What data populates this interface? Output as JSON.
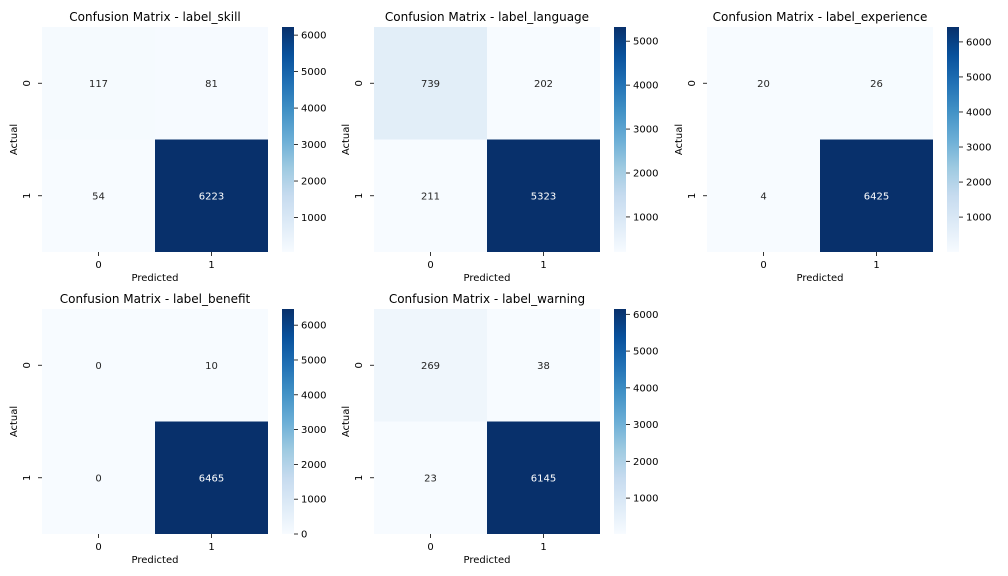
{
  "chart_data": [
    {
      "type": "heatmap",
      "title": "Confusion Matrix - label_skill",
      "xlabel": "Predicted",
      "ylabel": "Actual",
      "x_tick_labels": [
        "0",
        "1"
      ],
      "y_tick_labels": [
        "0",
        "1"
      ],
      "matrix": [
        [
          117,
          81
        ],
        [
          54,
          6223
        ]
      ],
      "colorbar": {
        "cmap": "Blues",
        "range": [
          54,
          6223
        ],
        "ticks": [
          1000,
          2000,
          3000,
          4000,
          5000,
          6000
        ]
      }
    },
    {
      "type": "heatmap",
      "title": "Confusion Matrix - label_language",
      "xlabel": "Predicted",
      "ylabel": "Actual",
      "x_tick_labels": [
        "0",
        "1"
      ],
      "y_tick_labels": [
        "0",
        "1"
      ],
      "matrix": [
        [
          739,
          202
        ],
        [
          211,
          5323
        ]
      ],
      "colorbar": {
        "cmap": "Blues",
        "range": [
          202,
          5323
        ],
        "ticks": [
          1000,
          2000,
          3000,
          4000,
          5000
        ]
      }
    },
    {
      "type": "heatmap",
      "title": "Confusion Matrix - label_experience",
      "xlabel": "Predicted",
      "ylabel": "Actual",
      "x_tick_labels": [
        "0",
        "1"
      ],
      "y_tick_labels": [
        "0",
        "1"
      ],
      "matrix": [
        [
          20,
          26
        ],
        [
          4,
          6425
        ]
      ],
      "colorbar": {
        "cmap": "Blues",
        "range": [
          4,
          6425
        ],
        "ticks": [
          1000,
          2000,
          3000,
          4000,
          5000,
          6000
        ]
      }
    },
    {
      "type": "heatmap",
      "title": "Confusion Matrix - label_benefit",
      "xlabel": "Predicted",
      "ylabel": "Actual",
      "x_tick_labels": [
        "0",
        "1"
      ],
      "y_tick_labels": [
        "0",
        "1"
      ],
      "matrix": [
        [
          0,
          10
        ],
        [
          0,
          6465
        ]
      ],
      "colorbar": {
        "cmap": "Blues",
        "range": [
          0,
          6465
        ],
        "ticks": [
          0,
          1000,
          2000,
          3000,
          4000,
          5000,
          6000
        ]
      }
    },
    {
      "type": "heatmap",
      "title": "Confusion Matrix - label_warning",
      "xlabel": "Predicted",
      "ylabel": "Actual",
      "x_tick_labels": [
        "0",
        "1"
      ],
      "y_tick_labels": [
        "0",
        "1"
      ],
      "matrix": [
        [
          269,
          38
        ],
        [
          23,
          6145
        ]
      ],
      "colorbar": {
        "cmap": "Blues",
        "range": [
          23,
          6145
        ],
        "ticks": [
          1000,
          2000,
          3000,
          4000,
          5000,
          6000
        ]
      }
    }
  ]
}
